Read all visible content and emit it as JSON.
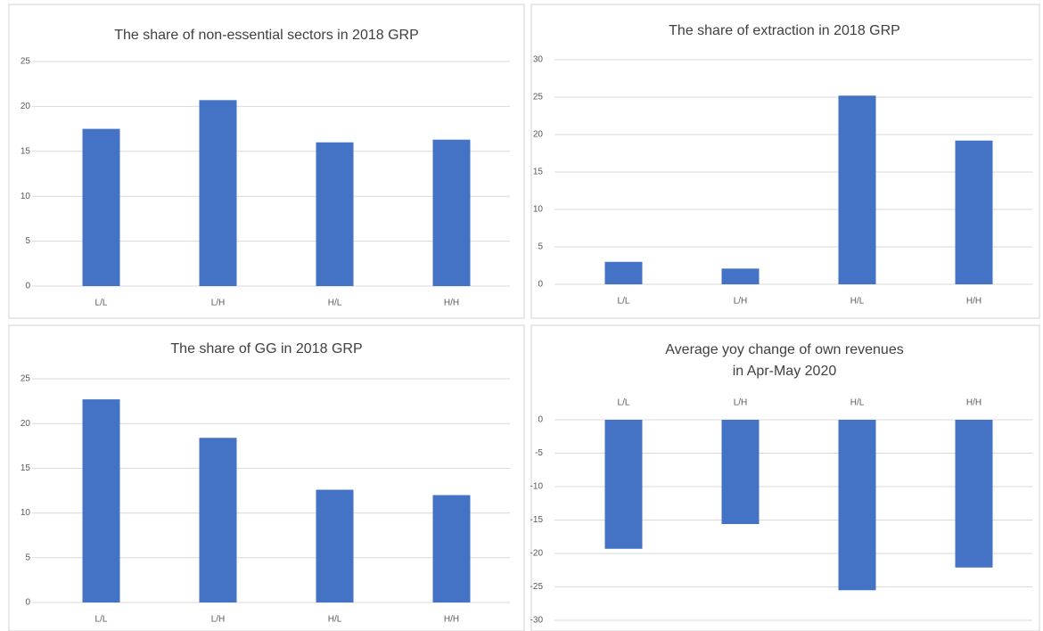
{
  "chart_data": [
    {
      "type": "bar",
      "title": [
        "The share of non-essential sectors in 2018 GRP"
      ],
      "categories": [
        "L/L",
        "L/H",
        "H/L",
        "H/H"
      ],
      "values": [
        17.5,
        20.7,
        16.0,
        16.3
      ],
      "color": "#4472c4",
      "ylim": [
        0,
        25
      ],
      "yticks": [
        0,
        5,
        10,
        15,
        20,
        25
      ],
      "grid": true
    },
    {
      "type": "bar",
      "title": [
        "The share of extraction in 2018 GRP"
      ],
      "categories": [
        "L/L",
        "L/H",
        "H/L",
        "H/H"
      ],
      "values": [
        3.0,
        2.1,
        25.2,
        19.2
      ],
      "color": "#4472c4",
      "ylim": [
        0,
        30
      ],
      "yticks": [
        0,
        5,
        10,
        15,
        20,
        25,
        30
      ],
      "grid": true
    },
    {
      "type": "bar",
      "title": [
        "The share of GG in 2018 GRP"
      ],
      "categories": [
        "L/L",
        "L/H",
        "H/L",
        "H/H"
      ],
      "values": [
        22.7,
        18.4,
        12.6,
        12.0
      ],
      "color": "#4472c4",
      "ylim": [
        0,
        25
      ],
      "yticks": [
        0,
        5,
        10,
        15,
        20,
        25
      ],
      "grid": true
    },
    {
      "type": "bar",
      "title": [
        "Average yoy change of own revenues",
        "in Apr-May 2020"
      ],
      "categories": [
        "L/L",
        "L/H",
        "H/L",
        "H/H"
      ],
      "values": [
        -19.3,
        -15.6,
        -25.5,
        -22.1
      ],
      "color": "#4472c4",
      "ylim": [
        -30,
        0
      ],
      "yticks": [
        -30,
        -25,
        -20,
        -15,
        -10,
        -5,
        0
      ],
      "grid": true
    }
  ]
}
